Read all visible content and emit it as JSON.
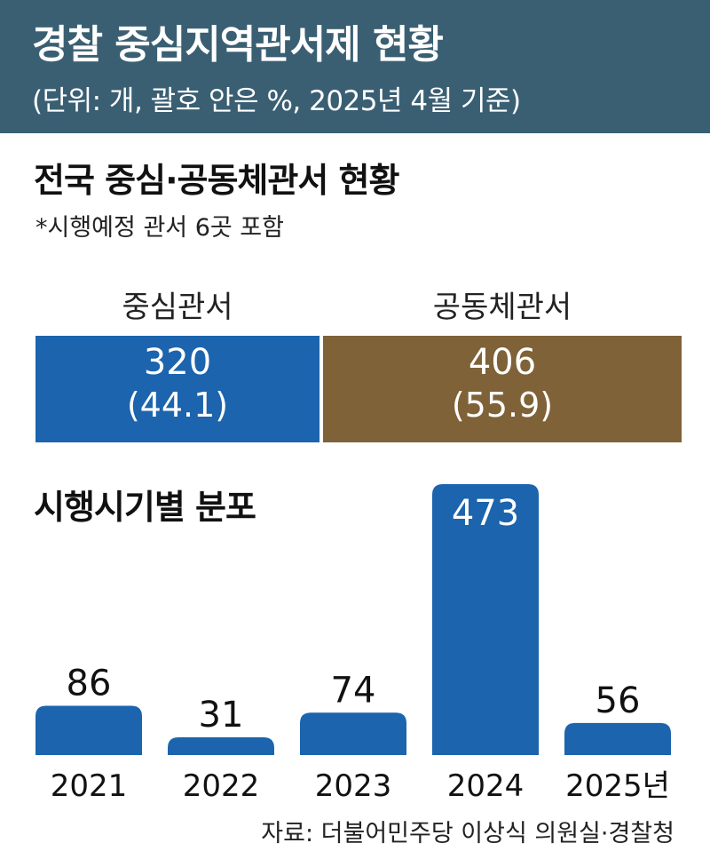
{
  "header": {
    "title": "경찰 중심지역관서제 현황",
    "subtitle": "(단위: 개, 괄호 안은 %, 2025년 4월 기준)"
  },
  "national": {
    "title": "전국 중심·공동체관서 현황",
    "note": "*시행예정 관서 6곳 포함",
    "segments": [
      {
        "label": "중심관서",
        "value": "320",
        "pct": "(44.1)",
        "color": "#1c64ad"
      },
      {
        "label": "공동체관서",
        "value": "406",
        "pct": "(55.9)",
        "color": "#7f6237"
      }
    ]
  },
  "source": "자료: 더불어민주당 이상식 의원실·경찰청",
  "chart_data": [
    {
      "type": "bar",
      "title": "전국 중심·공동체관서 현황",
      "orientation": "horizontal-stacked",
      "categories": [
        "중심관서",
        "공동체관서"
      ],
      "values": [
        320,
        406
      ],
      "percent": [
        44.1,
        55.9
      ]
    },
    {
      "type": "bar",
      "title": "시행시기별 분포",
      "categories": [
        "2021",
        "2022",
        "2023",
        "2024",
        "2025년"
      ],
      "values": [
        86,
        31,
        74,
        473,
        56
      ],
      "color": "#1c64ad",
      "ylim": [
        0,
        473
      ]
    }
  ]
}
